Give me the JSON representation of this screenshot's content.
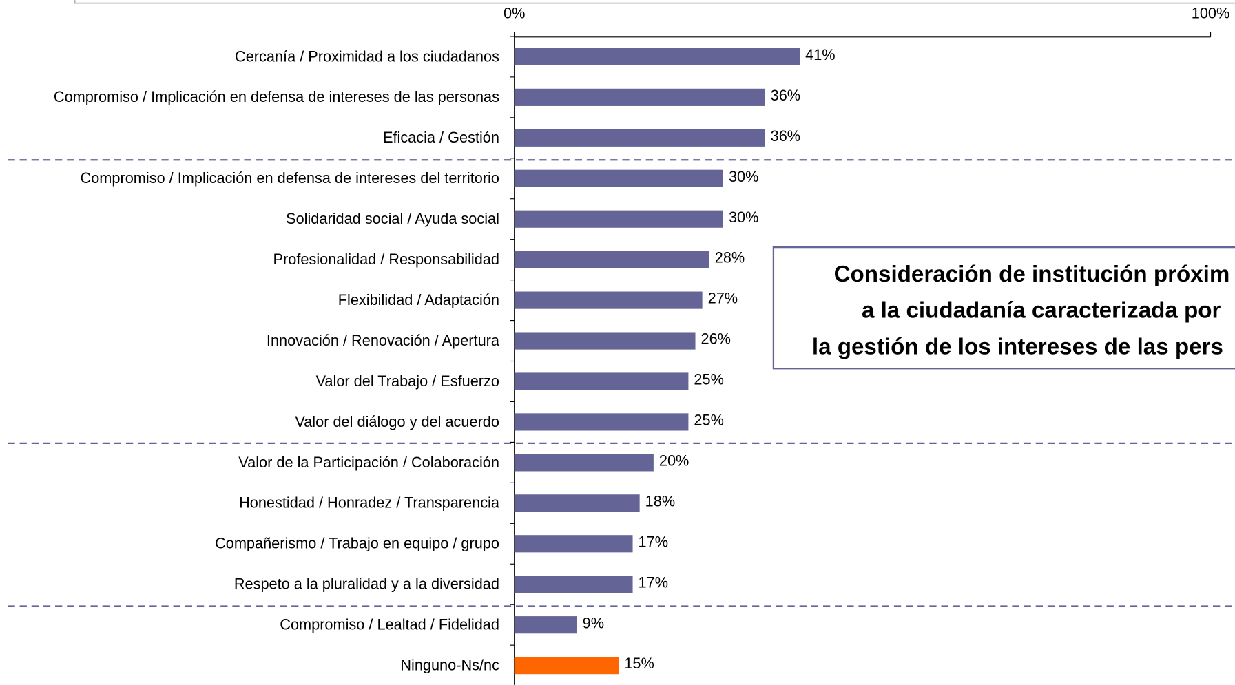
{
  "chart_data": {
    "type": "hbar",
    "categories": [
      "Cercanía / Proximidad a los ciudadanos",
      "Compromiso / Implicación en defensa de intereses de las personas",
      "Eficacia / Gestión",
      "Compromiso / Implicación en defensa de intereses del territorio",
      "Solidaridad social / Ayuda social",
      "Profesionalidad / Responsabilidad",
      "Flexibilidad / Adaptación",
      "Innovación / Renovación / Apertura",
      "Valor del Trabajo / Esfuerzo",
      "Valor del diálogo y del acuerdo",
      "Valor de la Participación / Colaboración",
      "Honestidad / Honradez / Transparencia",
      "Compañerismo / Trabajo en equipo / grupo",
      "Respeto a la pluralidad y a la diversidad",
      "Compromiso / Lealtad / Fidelidad",
      "Ninguno-Ns/nc"
    ],
    "values": [
      41,
      36,
      36,
      30,
      30,
      28,
      27,
      26,
      25,
      25,
      20,
      18,
      17,
      17,
      9,
      15
    ],
    "value_labels": [
      "41%",
      "36%",
      "36%",
      "30%",
      "30%",
      "28%",
      "27%",
      "26%",
      "25%",
      "25%",
      "20%",
      "18%",
      "17%",
      "17%",
      "9%",
      "15%"
    ],
    "colors": [
      "#646496",
      "#646496",
      "#646496",
      "#646496",
      "#646496",
      "#646496",
      "#646496",
      "#646496",
      "#646496",
      "#646496",
      "#646496",
      "#646496",
      "#646496",
      "#646496",
      "#646496",
      "#ff6600"
    ],
    "xlim": [
      0,
      100
    ],
    "xticks": [
      {
        "value": 0,
        "label": "0%"
      },
      {
        "value": 100,
        "label": "100%"
      }
    ],
    "annotation": [
      "Consideración de institución próxim",
      "a la ciudadanía caracterizada por",
      "la gestión de los intereses de las pers"
    ]
  }
}
